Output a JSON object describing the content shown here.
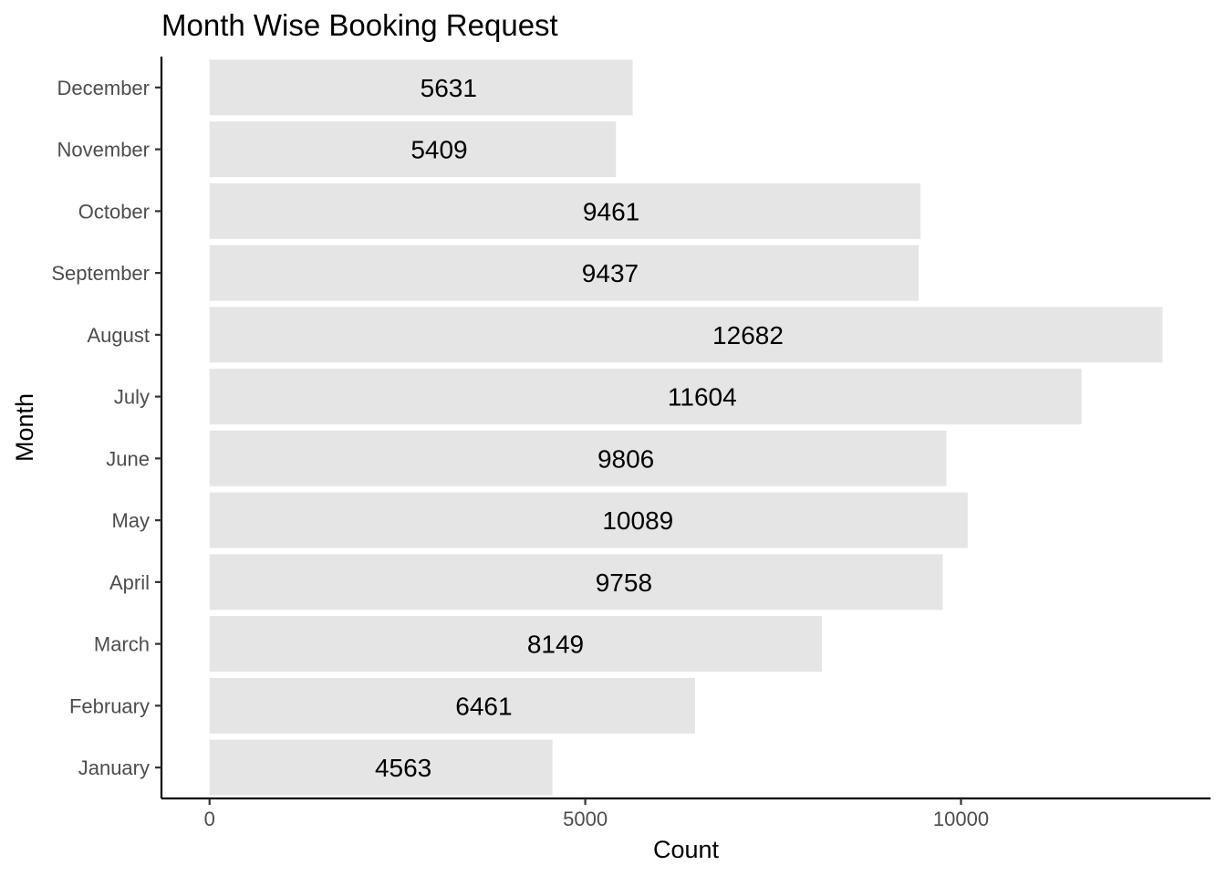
{
  "chart_data": {
    "type": "bar",
    "orientation": "horizontal",
    "title": "Month Wise Booking Request",
    "xlabel": "Count",
    "ylabel": "Month",
    "categories": [
      "January",
      "February",
      "March",
      "April",
      "May",
      "June",
      "July",
      "August",
      "September",
      "October",
      "November",
      "December"
    ],
    "values": [
      4563,
      6461,
      8149,
      9758,
      10089,
      9806,
      11604,
      12682,
      9437,
      9461,
      5409,
      5631
    ],
    "x_ticks": [
      0,
      5000,
      10000
    ],
    "xlim": [
      -640,
      13320
    ],
    "bar_color": "#e5e5e5",
    "grid": false,
    "legend": "none"
  }
}
